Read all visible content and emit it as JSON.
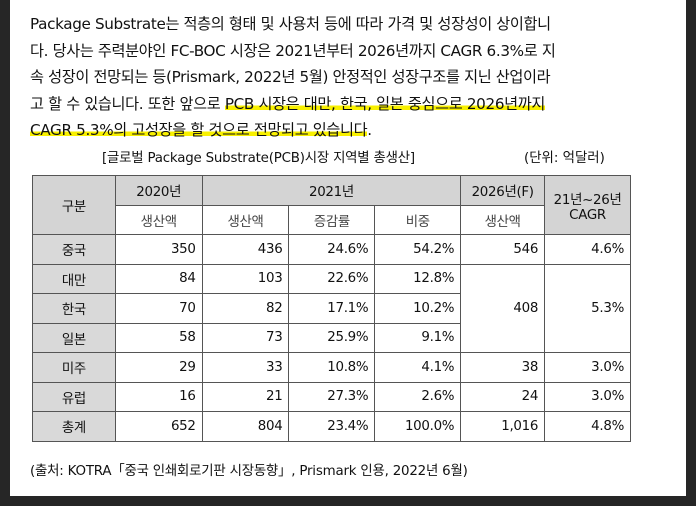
{
  "paragraph": {
    "line1": "Package Substrate는 적층의 형태 및 사용처 등에 따라 가격 및 성장성이 상이합니",
    "line2": "다. 당사는 주력분야인 FC-BOC 시장은 2021년부터 2026년까지 CAGR 6.3%로 지",
    "line3": "속 성장이 전망되는 등(Prismark, 2022년 5월) 안정적인 성장구조를 지닌 산업이라",
    "line4_plain": "고 할 수 있습니다. 또한 앞으로 ",
    "line4_highlight": "PCB 시장은 대만, 한국, 일본 중심으로 2026년까지",
    "line5_highlight": "CAGR 5.3%의 고성장을 할 것으로 전망되고 있습니다",
    "line5_plain": "."
  },
  "table_caption": "[글로벌 Package Substrate(PCB)시장 지역별 총생산]",
  "unit": "(단위: 억달러)",
  "table": {
    "header_region": "구분",
    "header_2020": "2020년",
    "header_2021": "2021년",
    "header_2026": "2026년(F)",
    "header_cagr_line1": "21년~26년",
    "header_cagr_line2": "CAGR",
    "sub_2020": "생산액",
    "sub_2021_prod": "생산액",
    "sub_2021_growth": "증감률",
    "sub_2021_share": "비중",
    "sub_2026": "생산액",
    "rows": [
      {
        "region": "중국",
        "p2020": "350",
        "p2021": "436",
        "growth": "24.6%",
        "share": "54.2%",
        "p2026": "546",
        "cagr": "4.6%"
      },
      {
        "region": "대만",
        "p2020": "84",
        "p2021": "103",
        "growth": "22.6%",
        "share": "12.8%"
      },
      {
        "region": "한국",
        "p2020": "70",
        "p2021": "82",
        "growth": "17.1%",
        "share": "10.2%",
        "p2026": "408",
        "cagr": "5.3%"
      },
      {
        "region": "일본",
        "p2020": "58",
        "p2021": "73",
        "growth": "25.9%",
        "share": "9.1%"
      },
      {
        "region": "미주",
        "p2020": "29",
        "p2021": "33",
        "growth": "10.8%",
        "share": "4.1%",
        "p2026": "38",
        "cagr": "3.0%"
      },
      {
        "region": "유럽",
        "p2020": "16",
        "p2021": "21",
        "growth": "27.3%",
        "share": "2.6%",
        "p2026": "24",
        "cagr": "3.0%"
      },
      {
        "region": "총계",
        "p2020": "652",
        "p2021": "804",
        "growth": "23.4%",
        "share": "100.0%",
        "p2026": "1,016",
        "cagr": "4.8%"
      }
    ]
  },
  "source": "(출처: KOTRA「중국 인쇄회로기판 시장동향」, Prismark 인용, 2022년 6월)",
  "colors": {
    "highlight": "#f8f000",
    "header_bg": "#d4d4d4",
    "region_bg": "#d9d9d9",
    "outer_bg": "#262626"
  }
}
